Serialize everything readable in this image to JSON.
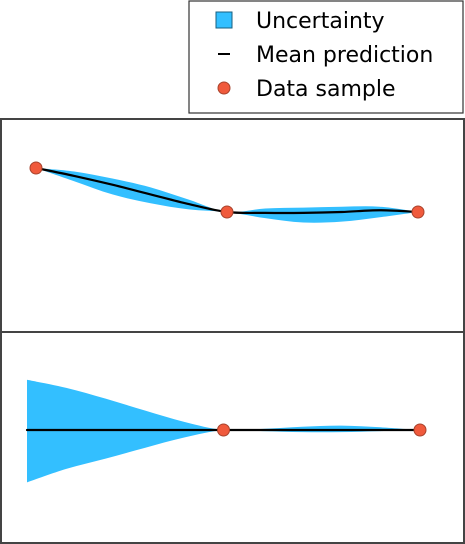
{
  "legend": {
    "uncertainty_label": "Uncertainty",
    "mean_label": "Mean prediction",
    "sample_label": "Data sample"
  },
  "colors": {
    "uncertainty": "#33BFFF",
    "mean": "#000000",
    "sample": "#F05A3C"
  },
  "chart_data": [
    {
      "type": "line",
      "title": "",
      "xlabel": "",
      "ylabel": "",
      "xlim": [
        0,
        1
      ],
      "ylim": [
        -1,
        1
      ],
      "samples": {
        "x": [
          0.0,
          0.5,
          1.0
        ],
        "y": [
          0.5,
          0.0,
          0.0
        ]
      },
      "mean": {
        "x": [
          0.0,
          0.1,
          0.2,
          0.3,
          0.4,
          0.5,
          0.6,
          0.7,
          0.8,
          0.9,
          1.0
        ],
        "y": [
          0.5,
          0.41,
          0.31,
          0.2,
          0.09,
          0.0,
          -0.01,
          -0.01,
          0.0,
          0.02,
          0.0
        ]
      },
      "uncertainty": {
        "x": [
          0.0,
          0.1,
          0.2,
          0.3,
          0.4,
          0.5,
          0.6,
          0.7,
          0.8,
          0.9,
          1.0
        ],
        "lower": [
          0.5,
          0.35,
          0.2,
          0.1,
          0.03,
          0.0,
          -0.07,
          -0.12,
          -0.11,
          -0.06,
          0.0
        ],
        "upper": [
          0.5,
          0.46,
          0.38,
          0.28,
          0.14,
          0.0,
          0.04,
          0.05,
          0.06,
          0.06,
          0.0
        ]
      }
    },
    {
      "type": "line",
      "title": "",
      "xlabel": "",
      "ylabel": "",
      "xlim": [
        0,
        1
      ],
      "ylim": [
        -1,
        1
      ],
      "samples": {
        "x": [
          0.5,
          1.0
        ],
        "y": [
          0.0,
          0.0
        ]
      },
      "mean": {
        "x": [
          0.0,
          0.1,
          0.2,
          0.3,
          0.4,
          0.5,
          0.6,
          0.7,
          0.8,
          0.9,
          1.0
        ],
        "y": [
          0,
          0,
          0,
          0,
          0,
          0,
          0,
          0,
          0,
          0,
          0
        ]
      },
      "uncertainty": {
        "x": [
          0.0,
          0.1,
          0.2,
          0.3,
          0.4,
          0.5,
          0.6,
          0.7,
          0.8,
          0.9,
          1.0
        ],
        "lower": [
          -0.97,
          -0.72,
          -0.53,
          -0.33,
          -0.14,
          0.0,
          -0.02,
          -0.04,
          -0.04,
          -0.02,
          0.0
        ],
        "upper": [
          0.93,
          0.78,
          0.58,
          0.36,
          0.15,
          0.0,
          0.02,
          0.06,
          0.08,
          0.05,
          0.0
        ]
      }
    }
  ]
}
